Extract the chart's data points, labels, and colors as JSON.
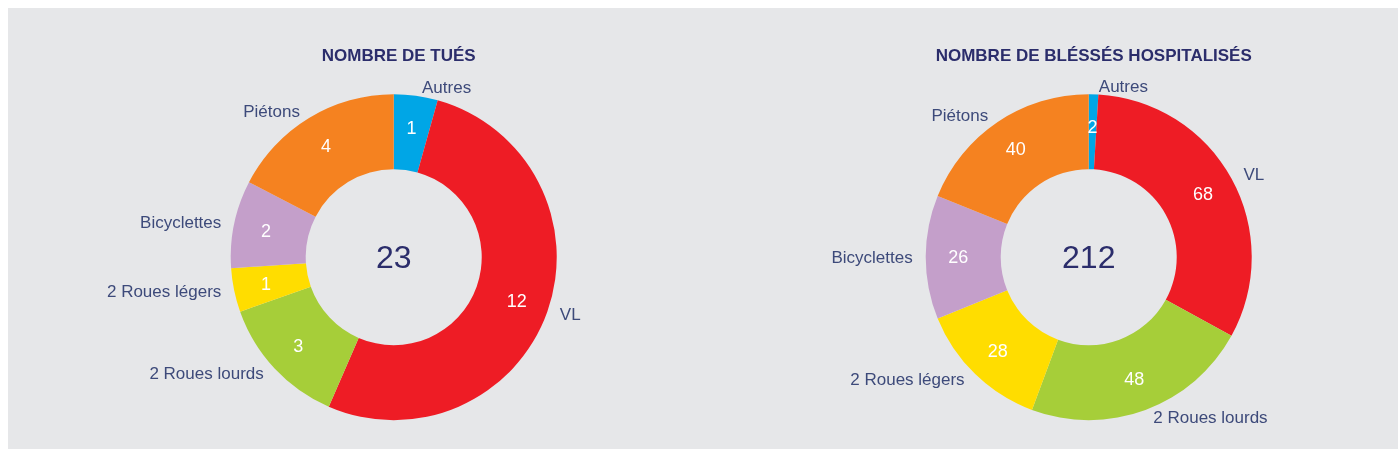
{
  "chart_data": [
    {
      "type": "donut",
      "title": "NOMBRE DE TUÉS",
      "categories": [
        "Autres",
        "VL",
        "2 Roues lourds",
        "2 Roues légers",
        "Bicyclettes",
        "Piétons"
      ],
      "values": [
        1,
        12,
        3,
        1,
        2,
        4
      ],
      "colors": [
        "#00a6e6",
        "#ee1c25",
        "#a6ce39",
        "#ffdd00",
        "#c49fca",
        "#f58220"
      ],
      "data_labels": true,
      "legend": false,
      "annotations": [
        "23"
      ]
    },
    {
      "type": "donut",
      "title": "NOMBRE DE BLÉSSÉS HOSPITALISÉS",
      "categories": [
        "Autres",
        "VL",
        "2 Roues lourds",
        "2 Roues légers",
        "Bicyclettes",
        "Piétons"
      ],
      "values": [
        2,
        68,
        48,
        28,
        26,
        40
      ],
      "colors": [
        "#00a6e6",
        "#ee1c25",
        "#a6ce39",
        "#ffdd00",
        "#c49fca",
        "#f58220"
      ],
      "data_labels": true,
      "legend": false,
      "annotations": [
        "212"
      ]
    }
  ]
}
